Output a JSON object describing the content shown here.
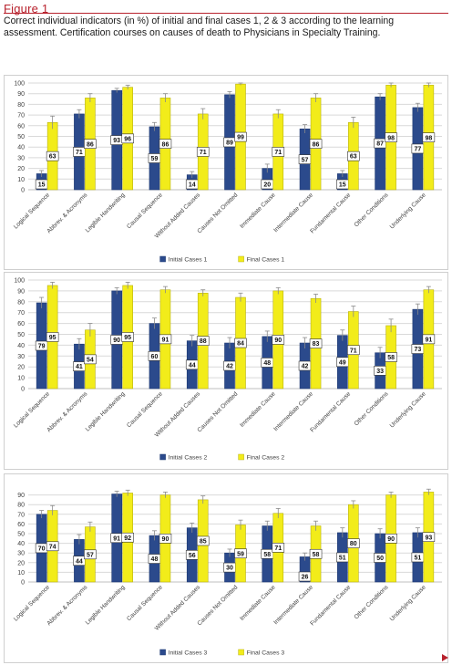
{
  "figure": {
    "label": "Figure 1",
    "caption": "Correct individual indicators (in %) of initial and final cases 1, 2 & 3 according to the learning assessment. Certification courses on causes of death to Physicians in Specialty Training."
  },
  "colors": {
    "initial": "#2b4a8c",
    "final": "#f2ec1a",
    "grid": "#d9d9d9",
    "error": "#8a8a8a"
  },
  "chart_data": [
    {
      "type": "bar",
      "categories": [
        "Logical Sequence",
        "Abbrev. & Acronyms",
        "Legible Handwriting",
        "Causal Sequence",
        "Without Added Causes",
        "Causes Not Omitted",
        "Immediate Cause",
        "Intermediate Cause",
        "Fundamental Cause",
        "Other Conditions",
        "Underlying Cause"
      ],
      "series": [
        {
          "name": "Initial Cases 1",
          "values": [
            15,
            71,
            93,
            59,
            14,
            89,
            20,
            57,
            15,
            87,
            77
          ],
          "errors": [
            3,
            4,
            2,
            4,
            3,
            3,
            4,
            4,
            3,
            3,
            4
          ]
        },
        {
          "name": "Final Cases 1",
          "values": [
            63,
            86,
            96,
            86,
            71,
            99,
            71,
            86,
            63,
            98,
            98
          ],
          "errors": [
            6,
            4,
            2,
            4,
            5,
            1,
            4,
            4,
            5,
            2,
            2
          ]
        }
      ],
      "ylim": [
        0,
        100
      ],
      "yticks": [
        0,
        10,
        20,
        30,
        40,
        50,
        60,
        70,
        80,
        90,
        100
      ],
      "legend": "bottom",
      "grid": true
    },
    {
      "type": "bar",
      "categories": [
        "Logical Sequence",
        "Abbrev. & Acronyms",
        "Legible Handwriting",
        "Causal Sequence",
        "Without Added Causes",
        "Causes Not Omitted",
        "Immediate Cause",
        "Intermediate Cause",
        "Fundamental Cause",
        "Other Conditions",
        "Underlying Cause"
      ],
      "series": [
        {
          "name": "Initial Cases 2",
          "values": [
            79,
            41,
            90,
            60,
            44,
            42,
            48,
            42,
            49,
            33,
            73
          ],
          "errors": [
            5,
            5,
            3,
            5,
            5,
            5,
            5,
            5,
            5,
            5,
            5
          ]
        },
        {
          "name": "Final Cases 2",
          "values": [
            95,
            54,
            95,
            91,
            88,
            84,
            90,
            83,
            71,
            58,
            91
          ],
          "errors": [
            3,
            6,
            3,
            3,
            3,
            4,
            3,
            4,
            5,
            6,
            3
          ]
        }
      ],
      "ylim": [
        0,
        100
      ],
      "yticks": [
        0,
        10,
        20,
        30,
        40,
        50,
        60,
        70,
        80,
        90,
        100
      ],
      "legend": "bottom",
      "grid": true
    },
    {
      "type": "bar",
      "categories": [
        "Logical Sequence",
        "Abbrev. & Acronyms",
        "Legible Handwriting",
        "Causal Sequence",
        "Without Added Causes",
        "Causes Not Omitted",
        "Immediate Cause",
        "Intermediate Cause",
        "Fundamental Cause",
        "Other Conditions",
        "Underlying Cause"
      ],
      "series": [
        {
          "name": "Initial Cases 3",
          "values": [
            70,
            44,
            91,
            48,
            56,
            30,
            58,
            26,
            51,
            50,
            51
          ],
          "errors": [
            4,
            5,
            3,
            5,
            5,
            4,
            5,
            4,
            5,
            5,
            5
          ]
        },
        {
          "name": "Final Cases 3",
          "values": [
            74,
            57,
            92,
            90,
            85,
            59,
            71,
            58,
            80,
            90,
            93
          ],
          "errors": [
            5,
            5,
            3,
            3,
            4,
            5,
            5,
            5,
            4,
            3,
            3
          ]
        }
      ],
      "ylim": [
        0,
        100
      ],
      "yticks": [
        0,
        10,
        20,
        30,
        40,
        50,
        60,
        70,
        80,
        90
      ],
      "legend": "bottom",
      "grid": true
    }
  ]
}
